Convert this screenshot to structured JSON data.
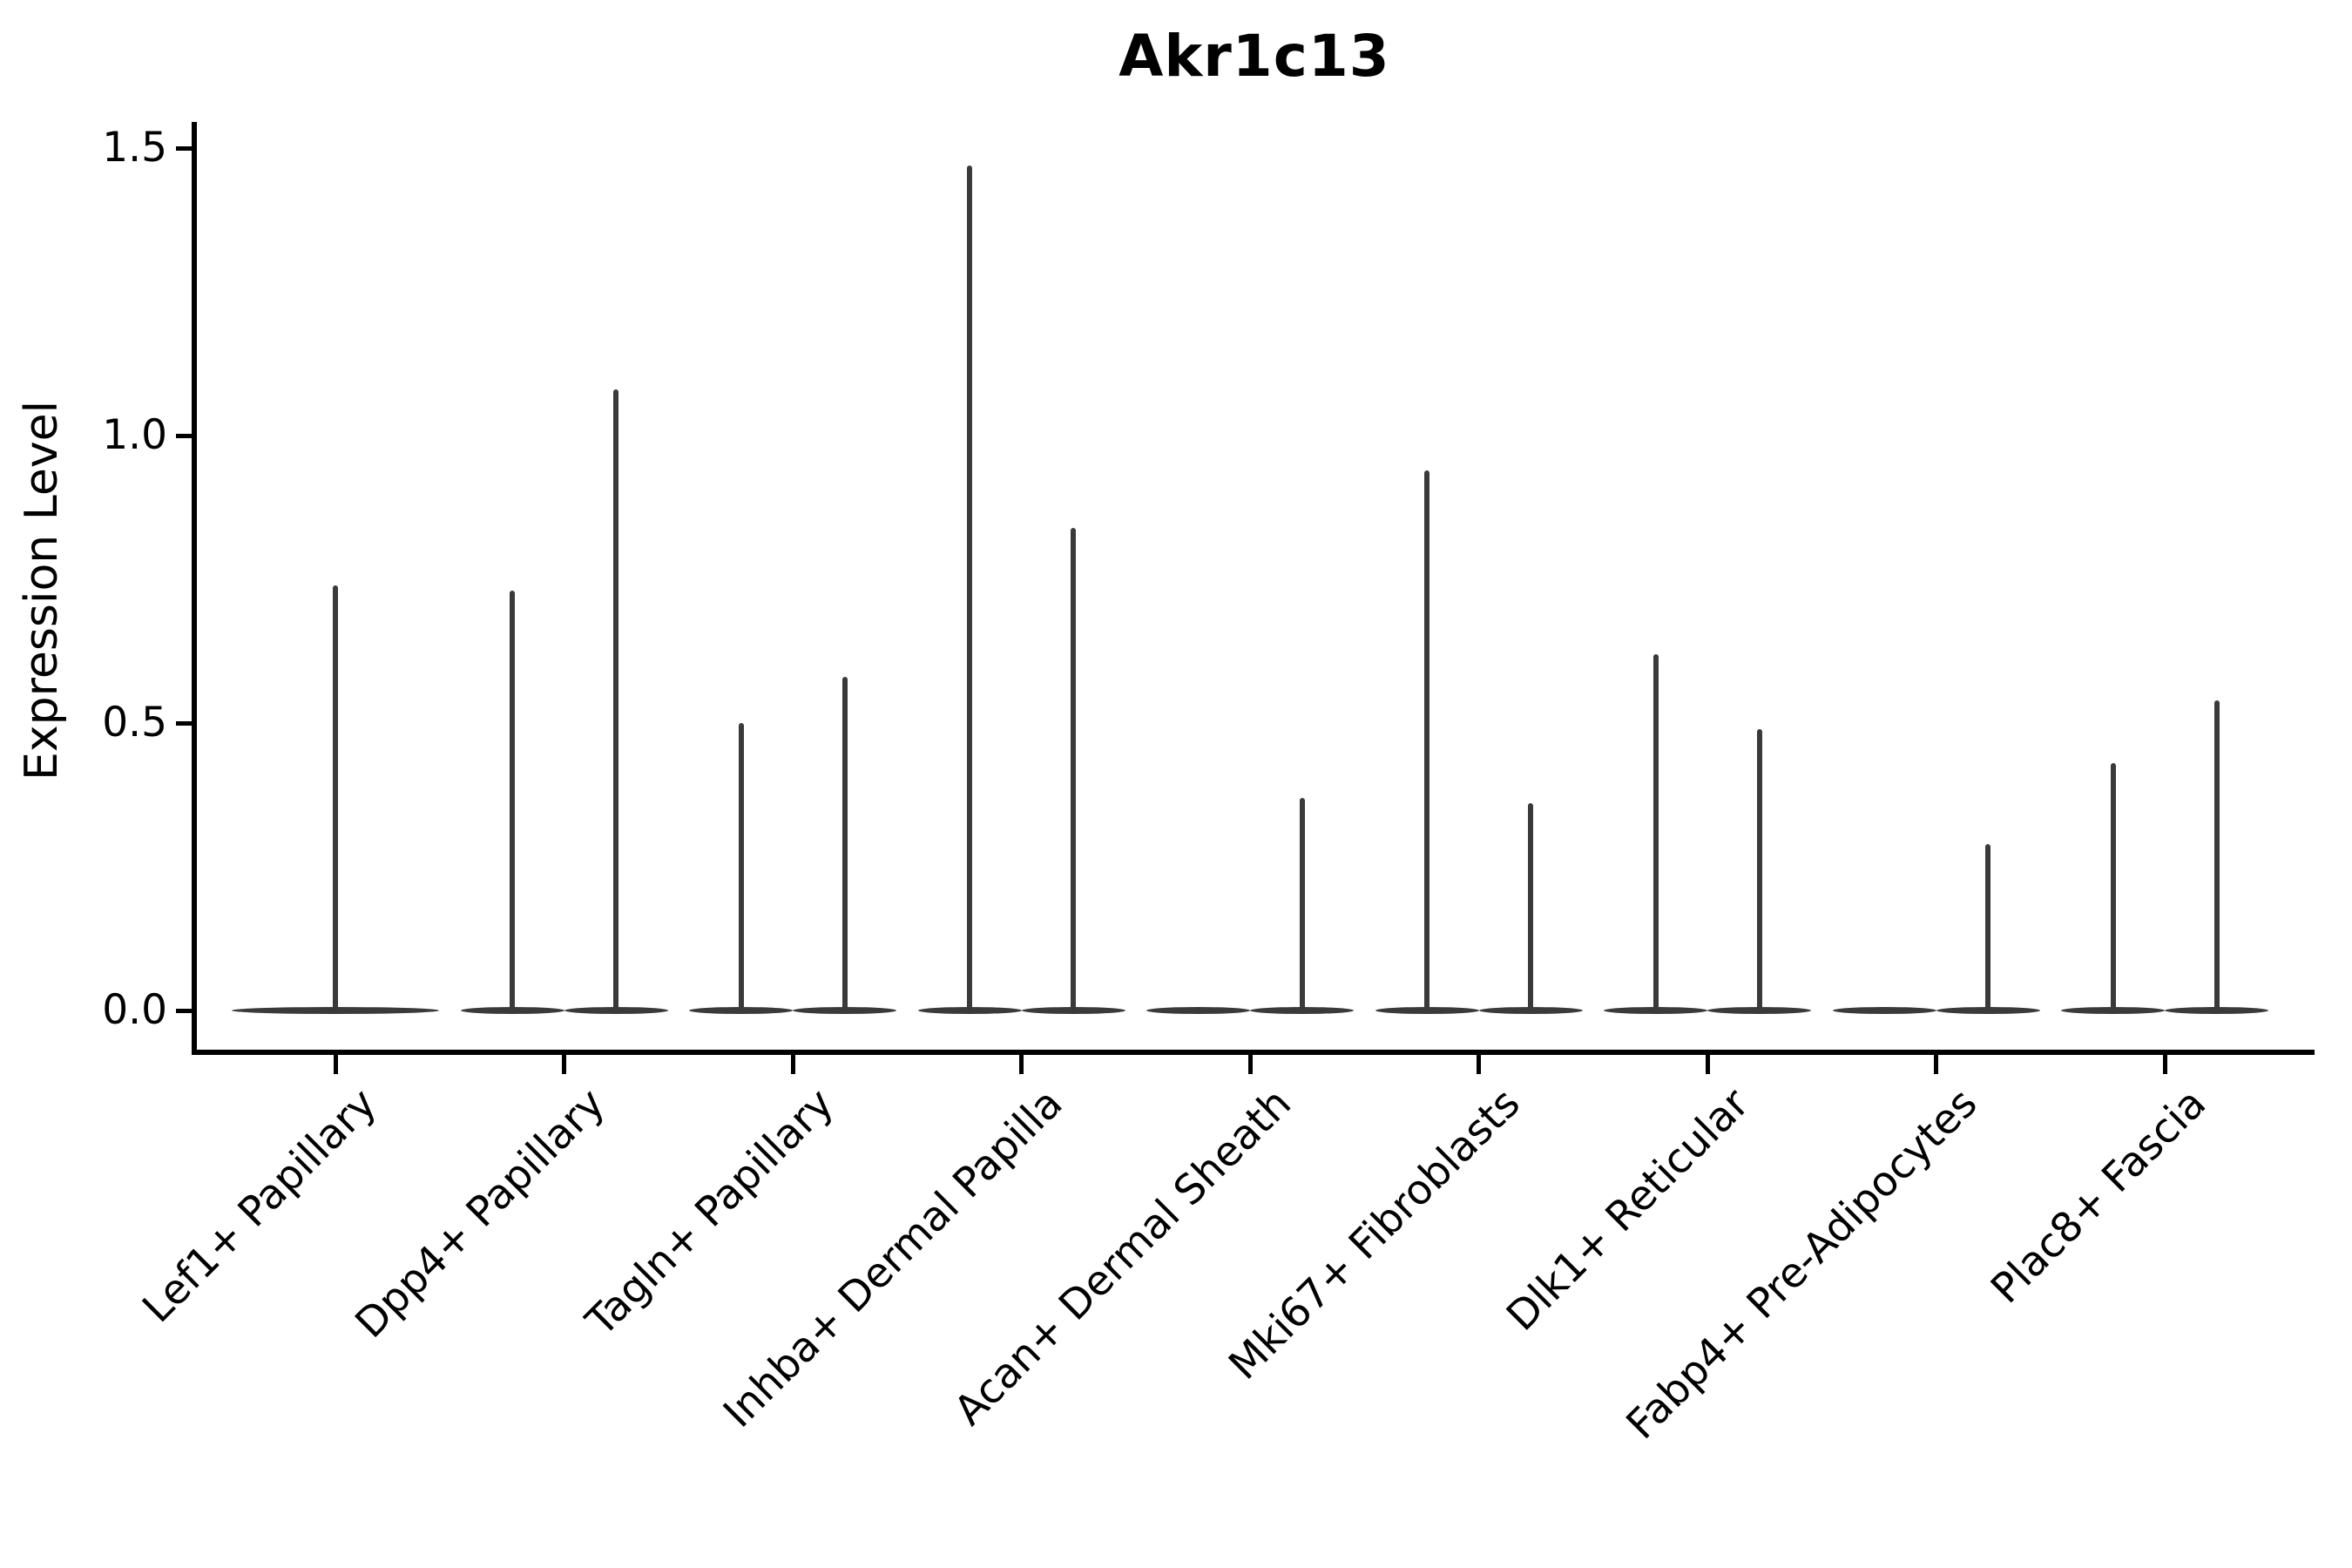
{
  "figure": {
    "title": "Akr1c13"
  },
  "y_axis": {
    "label": "Expression Level"
  },
  "chart_data": {
    "type": "violin",
    "title": "Akr1c13",
    "xlabel": "",
    "ylabel": "Expression Level",
    "ylim": [
      -0.07,
      1.55
    ],
    "yticks": [
      0.0,
      0.5,
      1.0,
      1.5
    ],
    "grid": false,
    "legend": "none",
    "violin_color": "#3a3a3a",
    "axis_color": "#000000",
    "note": "Each category shows narrow near-zero violins (flat base at 0 with a thin density spike up to the max expression). Categories with two violins have a left and right violin; value 0 means a flat violin with no spike.",
    "categories": [
      {
        "label": "Lef1+ Papillary",
        "violins": [
          {
            "position": "full",
            "max_expression": 0.74
          }
        ]
      },
      {
        "label": "Dpp4+ Papillary",
        "violins": [
          {
            "position": "left",
            "max_expression": 0.73
          },
          {
            "position": "right",
            "max_expression": 1.08
          }
        ]
      },
      {
        "label": "Tagln+ Papillary",
        "violins": [
          {
            "position": "left",
            "max_expression": 0.5
          },
          {
            "position": "right",
            "max_expression": 0.58
          }
        ]
      },
      {
        "label": "Inhba+ Dermal Papilla",
        "violins": [
          {
            "position": "left",
            "max_expression": 1.47
          },
          {
            "position": "right",
            "max_expression": 0.84
          }
        ]
      },
      {
        "label": "Acan+ Dermal Sheath",
        "violins": [
          {
            "position": "left",
            "max_expression": 0.0
          },
          {
            "position": "right",
            "max_expression": 0.37
          }
        ]
      },
      {
        "label": "Mki67+ Fibroblasts",
        "violins": [
          {
            "position": "left",
            "max_expression": 0.94
          },
          {
            "position": "right",
            "max_expression": 0.36
          }
        ]
      },
      {
        "label": "Dlk1+ Reticular",
        "violins": [
          {
            "position": "left",
            "max_expression": 0.62
          },
          {
            "position": "right",
            "max_expression": 0.49
          }
        ]
      },
      {
        "label": "Fabp4+ Pre-Adipocytes",
        "violins": [
          {
            "position": "left",
            "max_expression": 0.0
          },
          {
            "position": "right",
            "max_expression": 0.29
          }
        ]
      },
      {
        "label": "Plac8+ Fascia",
        "violins": [
          {
            "position": "left",
            "max_expression": 0.43
          },
          {
            "position": "right",
            "max_expression": 0.54
          }
        ]
      }
    ]
  }
}
